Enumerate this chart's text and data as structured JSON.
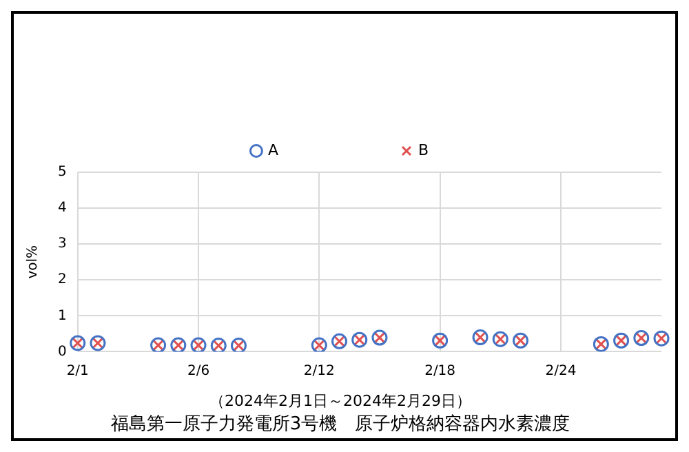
{
  "chart_data": {
    "type": "scatter",
    "title": "福島第一原子力発電所3号機　原子炉格納容器内水素濃度",
    "subtitle": "（2024年2月1日～2024年2月29日）",
    "ylabel": "vol%",
    "categories": [
      "2/1",
      null,
      null,
      null,
      null,
      null,
      "2/6",
      null,
      null,
      null,
      null,
      null,
      "2/12",
      null,
      null,
      null,
      null,
      null,
      "2/18",
      null,
      null,
      null,
      null,
      null,
      "2/24",
      null,
      null,
      null,
      null,
      null
    ],
    "series": [
      {
        "name": "A",
        "color": "#4472c4",
        "marker": "circle",
        "values": [
          0.24,
          0.24,
          null,
          null,
          0.18,
          0.18,
          0.18,
          0.17,
          0.17,
          null,
          null,
          null,
          0.18,
          0.29,
          0.33,
          0.39,
          null,
          null,
          0.31,
          null,
          0.4,
          0.35,
          0.31,
          null,
          null,
          null,
          0.21,
          0.31,
          0.38,
          0.37
        ]
      },
      {
        "name": "B",
        "color": "#e05050",
        "marker": "cross",
        "values": [
          0.24,
          0.24,
          null,
          null,
          0.18,
          0.18,
          0.18,
          0.17,
          0.17,
          null,
          null,
          null,
          0.18,
          0.29,
          0.33,
          0.39,
          null,
          null,
          0.31,
          null,
          0.4,
          0.35,
          0.31,
          null,
          null,
          null,
          0.21,
          0.31,
          0.38,
          0.37
        ]
      }
    ],
    "ylim": [
      0,
      5
    ],
    "yticks": [
      0,
      1,
      2,
      3,
      4,
      5
    ],
    "grid": true,
    "legend": "top"
  }
}
